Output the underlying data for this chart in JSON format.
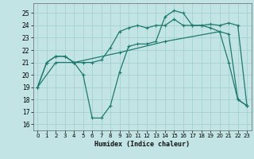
{
  "xlabel": "Humidex (Indice chaleur)",
  "bg_color": "#c2e4e4",
  "line_color": "#1e7a6e",
  "grid_color": "#a0cccc",
  "x_ticks": [
    0,
    1,
    2,
    3,
    4,
    5,
    6,
    7,
    8,
    9,
    10,
    11,
    12,
    13,
    14,
    15,
    16,
    17,
    18,
    19,
    20,
    21,
    22,
    23
  ],
  "y_ticks": [
    16,
    17,
    18,
    19,
    20,
    21,
    22,
    23,
    24,
    25
  ],
  "xlim": [
    -0.5,
    23.5
  ],
  "ylim": [
    15.5,
    25.8
  ],
  "line1_x": [
    0,
    1,
    2,
    3,
    4,
    5,
    6,
    7,
    8,
    9,
    10,
    11,
    12,
    13,
    14,
    15,
    16,
    17,
    18,
    19,
    20,
    21,
    22,
    23
  ],
  "line1_y": [
    19,
    21,
    21.5,
    21.5,
    21,
    20,
    16.5,
    16.5,
    17.5,
    20.2,
    22.3,
    22.5,
    22.5,
    22.7,
    24.7,
    25.2,
    25,
    24,
    24,
    23.8,
    23.5,
    21,
    18,
    17.5
  ],
  "line2_x": [
    0,
    1,
    2,
    3,
    4,
    5,
    6,
    7,
    8,
    9,
    10,
    11,
    12,
    13,
    14,
    15,
    16,
    17,
    18,
    19,
    20,
    21,
    22,
    23
  ],
  "line2_y": [
    19,
    21,
    21.5,
    21.5,
    21,
    21,
    21,
    21.2,
    22.2,
    23.5,
    23.8,
    24,
    23.8,
    24,
    24,
    24.5,
    24,
    24,
    24,
    24.1,
    24,
    24.2,
    24,
    17.5
  ],
  "line3_x": [
    0,
    2,
    4,
    9,
    14,
    20,
    21,
    22,
    23
  ],
  "line3_y": [
    19,
    21,
    21,
    21.8,
    22.7,
    23.5,
    23.3,
    18,
    17.5
  ]
}
